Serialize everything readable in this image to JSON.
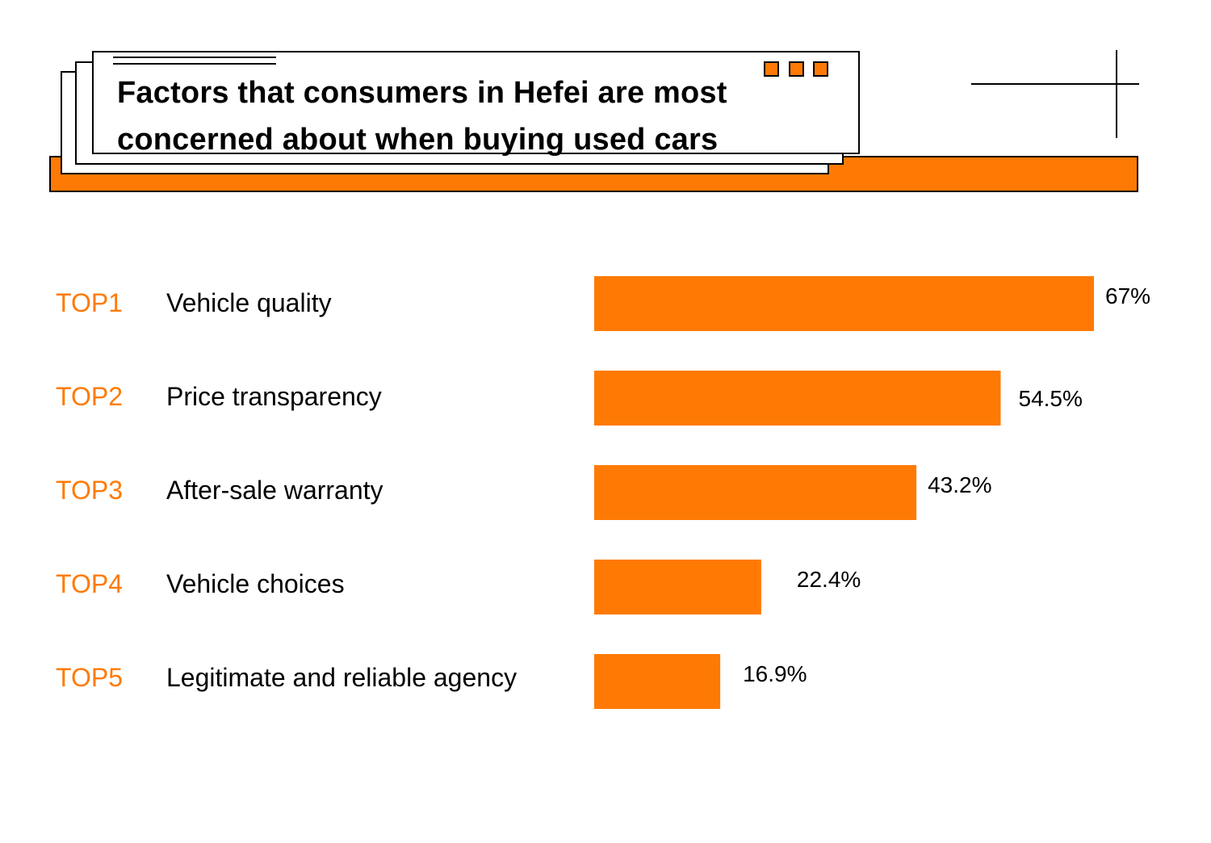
{
  "header": {
    "title_line1": "Factors that consumers in Hefei are most",
    "title_line2": "concerned about when buying used cars"
  },
  "colors": {
    "accent": "#FF7A05",
    "ink": "#000000"
  },
  "chart_data": {
    "type": "bar",
    "orientation": "horizontal",
    "title": "Factors that consumers in Hefei are most concerned about when buying used cars",
    "ranks": [
      "TOP1",
      "TOP2",
      "TOP3",
      "TOP4",
      "TOP5"
    ],
    "categories": [
      "Vehicle quality",
      "Price transparency",
      "After-sale warranty",
      "Vehicle choices",
      "Legitimate and reliable agency"
    ],
    "values": [
      67,
      54.5,
      43.2,
      22.4,
      16.9
    ],
    "value_labels": [
      "67%",
      "54.5%",
      "43.2%",
      "22.4%",
      "16.9%"
    ],
    "unit": "%",
    "xlim": [
      0,
      67
    ]
  }
}
